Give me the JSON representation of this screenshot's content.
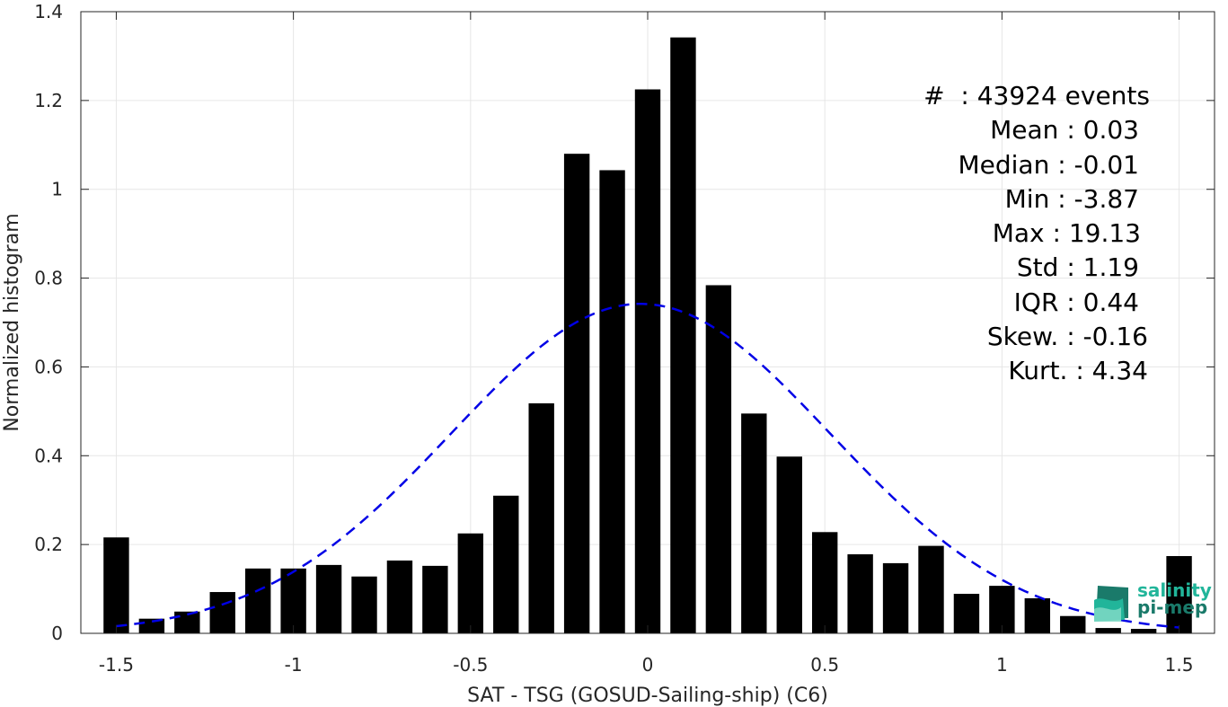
{
  "chart_data": {
    "type": "bar",
    "xlabel": "SAT - TSG (GOSUD-Sailing-ship) (C6)",
    "ylabel": "Normalized histogram",
    "xlim": [
      -1.6,
      1.6
    ],
    "ylim": [
      0,
      1.4
    ],
    "grid": true,
    "bar_color": "#000000",
    "bin_width": 0.1,
    "bins": [
      {
        "x": -1.5,
        "y": 0.216
      },
      {
        "x": -1.4,
        "y": 0.033
      },
      {
        "x": -1.3,
        "y": 0.049
      },
      {
        "x": -1.2,
        "y": 0.093
      },
      {
        "x": -1.1,
        "y": 0.146
      },
      {
        "x": -1.0,
        "y": 0.146
      },
      {
        "x": -0.9,
        "y": 0.154
      },
      {
        "x": -0.8,
        "y": 0.128
      },
      {
        "x": -0.7,
        "y": 0.164
      },
      {
        "x": -0.6,
        "y": 0.152
      },
      {
        "x": -0.5,
        "y": 0.225
      },
      {
        "x": -0.4,
        "y": 0.31
      },
      {
        "x": -0.3,
        "y": 0.518
      },
      {
        "x": -0.2,
        "y": 1.08
      },
      {
        "x": -0.1,
        "y": 1.043
      },
      {
        "x": 0.0,
        "y": 1.225
      },
      {
        "x": 0.1,
        "y": 1.342
      },
      {
        "x": 0.2,
        "y": 0.784
      },
      {
        "x": 0.3,
        "y": 0.495
      },
      {
        "x": 0.4,
        "y": 0.398
      },
      {
        "x": 0.5,
        "y": 0.228
      },
      {
        "x": 0.6,
        "y": 0.178
      },
      {
        "x": 0.7,
        "y": 0.158
      },
      {
        "x": 0.8,
        "y": 0.197
      },
      {
        "x": 0.9,
        "y": 0.089
      },
      {
        "x": 1.0,
        "y": 0.107
      },
      {
        "x": 1.1,
        "y": 0.079
      },
      {
        "x": 1.2,
        "y": 0.039
      },
      {
        "x": 1.3,
        "y": 0.012
      },
      {
        "x": 1.4,
        "y": 0.01
      },
      {
        "x": 1.5,
        "y": 0.174
      }
    ],
    "fit_curve": {
      "style": "dashed",
      "color": "#0000e6",
      "mean": -0.02,
      "sigma": 0.535,
      "peak": 0.742,
      "x_range": [
        -1.5,
        1.5
      ]
    },
    "xticks": [
      -1.5,
      -1,
      -0.5,
      0,
      0.5,
      1,
      1.5
    ],
    "xtick_labels": [
      "-1.5",
      "-1",
      "-0.5",
      "0",
      "0.5",
      "1",
      "1.5"
    ],
    "yticks": [
      0,
      0.2,
      0.4,
      0.6,
      0.8,
      1,
      1.2,
      1.4
    ],
    "ytick_labels": [
      "0",
      "0.2",
      "0.4",
      "0.6",
      "0.8",
      "1",
      "1.2",
      "1.4"
    ],
    "annotations": [
      "#  : 43924 events",
      "Mean : 0.03",
      "Median : -0.01",
      "Min : -3.87",
      "Max : 19.13",
      "Std : 1.19",
      "IQR : 0.44",
      "Skew. : -0.16",
      "Kurt. : 4.34"
    ]
  },
  "logo": {
    "line1": "salinity",
    "line2": "pi-mep",
    "colors": [
      "#21b59a",
      "#1a7a6a",
      "#7fd9c5"
    ]
  }
}
